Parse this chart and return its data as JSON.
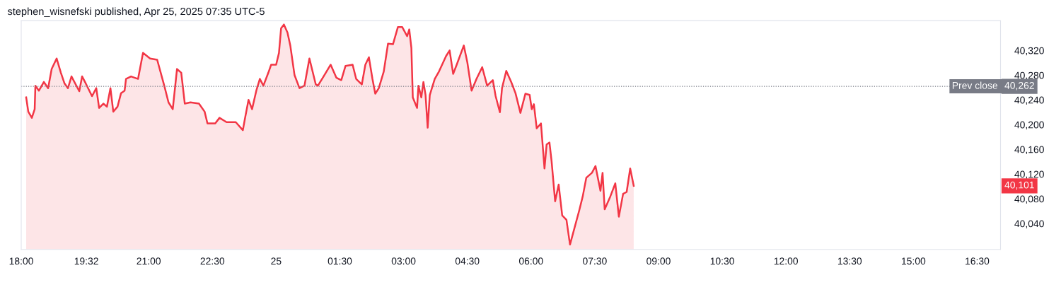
{
  "chart_data": {
    "type": "area",
    "title": "stephen_wisnefski published, Apr 25, 2025 07:35 UTC-5",
    "x": [
      "2025-04-24T18:07",
      "2025-04-24T18:10",
      "2025-04-24T18:15",
      "2025-04-24T18:19",
      "2025-04-24T18:20",
      "2025-04-24T18:25",
      "2025-04-24T18:32",
      "2025-04-24T18:38",
      "2025-04-24T18:43",
      "2025-04-24T18:50",
      "2025-04-24T18:56",
      "2025-04-24T19:01",
      "2025-04-24T19:06",
      "2025-04-24T19:11",
      "2025-04-24T19:22",
      "2025-04-24T19:26",
      "2025-04-24T19:31",
      "2025-04-24T19:40",
      "2025-04-24T19:46",
      "2025-04-24T19:50",
      "2025-04-24T19:56",
      "2025-04-24T20:01",
      "2025-04-24T20:06",
      "2025-04-24T20:10",
      "2025-04-24T20:16",
      "2025-04-24T20:21",
      "2025-04-24T20:26",
      "2025-04-24T20:28",
      "2025-04-24T20:35",
      "2025-04-24T20:45",
      "2025-04-24T20:52",
      "2025-04-24T21:02",
      "2025-04-24T21:12",
      "2025-04-24T21:22",
      "2025-04-24T21:28",
      "2025-04-24T21:34",
      "2025-04-24T21:40",
      "2025-04-24T21:46",
      "2025-04-24T21:51",
      "2025-04-24T21:59",
      "2025-04-24T22:11",
      "2025-04-24T22:19",
      "2025-04-24T22:23",
      "2025-04-24T22:34",
      "2025-04-24T22:40",
      "2025-04-24T22:50",
      "2025-04-24T23:03",
      "2025-04-24T23:13",
      "2025-04-24T23:16",
      "2025-04-24T23:21",
      "2025-04-24T23:26",
      "2025-04-24T23:32",
      "2025-04-24T23:37",
      "2025-04-24T23:42",
      "2025-04-24T23:49",
      "2025-04-24T23:53",
      "2025-04-25T00:00",
      "2025-04-25T00:04",
      "2025-04-25T00:07",
      "2025-04-25T00:11",
      "2025-04-25T00:16",
      "2025-04-25T00:20",
      "2025-04-25T00:26",
      "2025-04-25T00:33",
      "2025-04-25T00:40",
      "2025-04-25T00:47",
      "2025-04-25T00:56",
      "2025-04-25T00:59",
      "2025-04-25T01:07",
      "2025-04-25T01:17",
      "2025-04-25T01:25",
      "2025-04-25T01:32",
      "2025-04-25T01:38",
      "2025-04-25T01:48",
      "2025-04-25T01:53",
      "2025-04-25T02:01",
      "2025-04-25T02:06",
      "2025-04-25T02:11",
      "2025-04-25T02:16",
      "2025-04-25T02:20",
      "2025-04-25T02:25",
      "2025-04-25T02:32",
      "2025-04-25T02:38",
      "2025-04-25T02:45",
      "2025-04-25T02:52",
      "2025-04-25T02:58",
      "2025-04-25T03:05",
      "2025-04-25T03:08",
      "2025-04-25T03:11",
      "2025-04-25T03:13",
      "2025-04-25T03:19",
      "2025-04-25T03:21",
      "2025-04-25T03:25",
      "2025-04-25T03:28",
      "2025-04-25T03:31",
      "2025-04-25T03:34",
      "2025-04-25T03:37",
      "2025-04-25T03:44",
      "2025-04-25T03:50",
      "2025-04-25T04:00",
      "2025-04-25T04:05",
      "2025-04-25T04:10",
      "2025-04-25T04:15",
      "2025-04-25T04:25",
      "2025-04-25T04:30",
      "2025-04-25T04:36",
      "2025-04-25T04:43",
      "2025-04-25T04:51",
      "2025-04-25T04:58",
      "2025-04-25T05:06",
      "2025-04-25T05:10",
      "2025-04-25T05:16",
      "2025-04-25T05:19",
      "2025-04-25T05:25",
      "2025-04-25T05:32",
      "2025-04-25T05:38",
      "2025-04-25T05:45",
      "2025-04-25T05:52",
      "2025-04-25T05:58",
      "2025-04-25T06:01",
      "2025-04-25T06:04",
      "2025-04-25T06:08",
      "2025-04-25T06:14",
      "2025-04-25T06:19",
      "2025-04-25T06:22",
      "2025-04-25T06:26",
      "2025-04-25T06:29",
      "2025-04-25T06:34",
      "2025-04-25T06:39",
      "2025-04-25T06:44",
      "2025-04-25T06:50",
      "2025-04-25T06:55",
      "2025-04-25T07:00",
      "2025-04-25T07:08",
      "2025-04-25T07:13",
      "2025-04-25T07:18",
      "2025-04-25T07:26",
      "2025-04-25T07:31",
      "2025-04-25T07:38",
      "2025-04-25T07:41",
      "2025-04-25T07:44",
      "2025-04-25T07:52",
      "2025-04-25T07:59",
      "2025-04-25T08:04",
      "2025-04-25T08:10",
      "2025-04-25T08:15",
      "2025-04-25T08:20",
      "2025-04-25T08:25"
    ],
    "series": [
      {
        "color": "#f23645",
        "values": [
          40244,
          40221,
          40211,
          40225,
          40263,
          40255,
          40269,
          40259,
          40290,
          40307,
          40284,
          40267,
          40259,
          40278,
          40254,
          40278,
          40267,
          40246,
          40259,
          40227,
          40234,
          40229,
          40259,
          40221,
          40229,
          40251,
          40255,
          40274,
          40278,
          40274,
          40316,
          40307,
          40305,
          40263,
          40236,
          40225,
          40290,
          40284,
          40234,
          40236,
          40234,
          40221,
          40202,
          40202,
          40211,
          40204,
          40204,
          40191,
          40210,
          40240,
          40225,
          40255,
          40274,
          40263,
          40284,
          40297,
          40297,
          40316,
          40356,
          40362,
          40349,
          40328,
          40280,
          40259,
          40263,
          40307,
          40265,
          40263,
          40278,
          40297,
          40276,
          40272,
          40295,
          40297,
          40274,
          40265,
          40297,
          40309,
          40274,
          40250,
          40259,
          40286,
          40331,
          40330,
          40358,
          40358,
          40343,
          40354,
          40324,
          40244,
          40227,
          40263,
          40244,
          40269,
          40248,
          40195,
          40248,
          40274,
          40286,
          40311,
          40320,
          40282,
          40297,
          40328,
          40301,
          40255,
          40274,
          40293,
          40263,
          40272,
          40246,
          40220,
          40259,
          40287,
          40269,
          40251,
          40219,
          40250,
          40248,
          40225,
          40233,
          40194,
          40202,
          40129,
          40168,
          40171,
          40141,
          40076,
          40103,
          40053,
          40046,
          40006,
          40027,
          40061,
          40084,
          40114,
          40122,
          40133,
          40093,
          40122,
          40063,
          40084,
          40105,
          40051,
          40088,
          40091,
          40129,
          40101
        ]
      }
    ],
    "xlim": [
      "2025-04-24T18:00",
      "2025-04-25T17:03"
    ],
    "ylim": [
      39998,
      40368
    ],
    "xticks": [
      {
        "value": "2025-04-24T18:00",
        "label": "18:00"
      },
      {
        "value": "2025-04-24T19:32",
        "label": "19:32"
      },
      {
        "value": "2025-04-24T21:00",
        "label": "21:00"
      },
      {
        "value": "2025-04-24T22:30",
        "label": "22:30"
      },
      {
        "value": "2025-04-25",
        "label": "25"
      },
      {
        "value": "2025-04-25T01:30",
        "label": "01:30"
      },
      {
        "value": "2025-04-25T03:00",
        "label": "03:00"
      },
      {
        "value": "2025-04-25T04:30",
        "label": "04:30"
      },
      {
        "value": "2025-04-25T06:00",
        "label": "06:00"
      },
      {
        "value": "2025-04-25T07:30",
        "label": "07:30"
      },
      {
        "value": "2025-04-25T09:00",
        "label": "09:00"
      },
      {
        "value": "2025-04-25T10:30",
        "label": "10:30"
      },
      {
        "value": "2025-04-25T12:00",
        "label": "12:00"
      },
      {
        "value": "2025-04-25T13:30",
        "label": "13:30"
      },
      {
        "value": "2025-04-25T15:00",
        "label": "15:00"
      },
      {
        "value": "2025-04-25T16:30",
        "label": "16:30"
      }
    ],
    "yticks": [
      {
        "value": 40040,
        "label": "40,040"
      },
      {
        "value": 40080,
        "label": "40,080"
      },
      {
        "value": 40120,
        "label": "40,120"
      },
      {
        "value": 40160,
        "label": "40,160"
      },
      {
        "value": 40200,
        "label": "40,200"
      },
      {
        "value": 40240,
        "label": "40,240"
      },
      {
        "value": 40280,
        "label": "40,280"
      },
      {
        "value": 40320,
        "label": "40,320"
      }
    ],
    "ref_lines": [
      {
        "axis": "y",
        "value": 40262,
        "label": "Prev close",
        "color": "#787b86",
        "line_style": "dotted"
      }
    ],
    "annotations": [
      {
        "text": "40,262",
        "x": "2025-04-25T17:03",
        "y": 40262
      },
      "40,101"
    ],
    "grid": false
  }
}
